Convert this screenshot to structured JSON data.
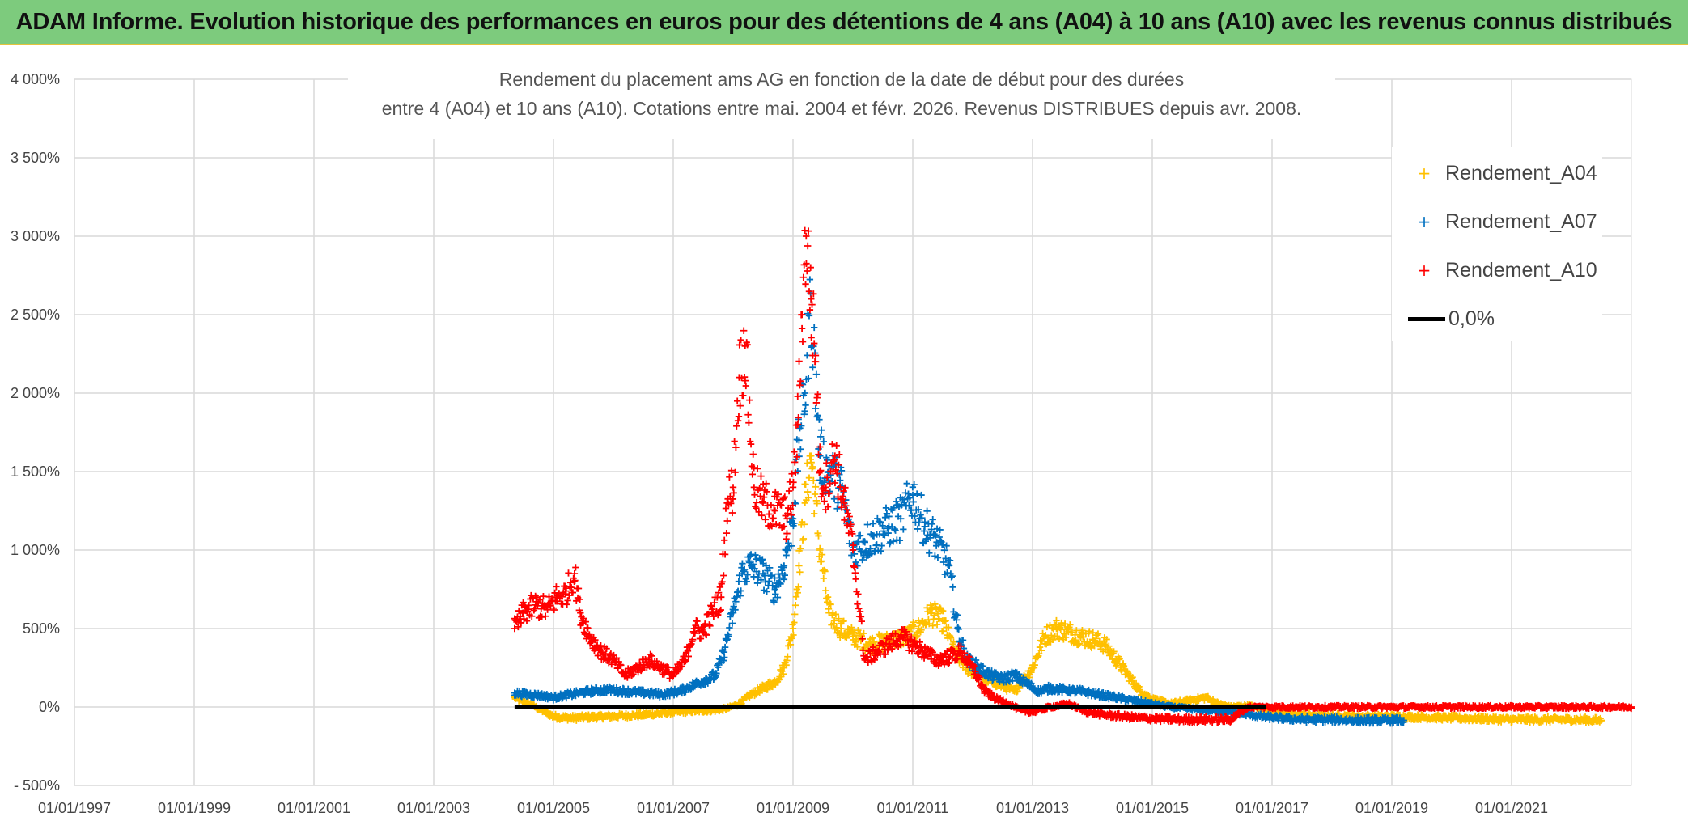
{
  "header": {
    "title": "ADAM Informe. Evolution historique des performances en euros pour des détentions de 4 ans (A04) à 10 ans (A10) avec les revenus connus distribués"
  },
  "chart_data": {
    "type": "scatter",
    "title": "Rendement du placement ams AG en fonction de la date de début pour des durées",
    "subtitle": "entre 4 (A04) et 10 ans (A10). Cotations entre mai. 2004 et févr. 2026. Revenus DISTRIBUES depuis avr. 2008.",
    "xlabel": "",
    "ylabel": "",
    "x_range": [
      "01/01/1997",
      "01/01/2023"
    ],
    "ylim": [
      -500,
      4000
    ],
    "y_ticks": [
      -500,
      0,
      500,
      1000,
      1500,
      2000,
      2500,
      3000,
      3500,
      4000
    ],
    "y_tick_labels": [
      "- 500%",
      "0%",
      "500%",
      "1 000%",
      "1 500%",
      "2 000%",
      "2 500%",
      "3 000%",
      "3 500%",
      "4 000%"
    ],
    "x_tick_labels": [
      "01/01/1997",
      "01/01/1999",
      "01/01/2001",
      "01/01/2003",
      "01/01/2005",
      "01/01/2007",
      "01/01/2009",
      "01/01/2011",
      "01/01/2013",
      "01/01/2015",
      "01/01/2017",
      "01/01/2019",
      "01/01/2021"
    ],
    "grid": true,
    "legend_position": "top-right",
    "series": [
      {
        "name": "Rendement_A04",
        "color": "#ffc000",
        "x": [
          2004.35,
          2004.6,
          2004.85,
          2005.0,
          2005.3,
          2005.6,
          2005.9,
          2006.2,
          2006.5,
          2006.8,
          2007.1,
          2007.4,
          2007.7,
          2007.9,
          2008.1,
          2008.3,
          2008.5,
          2008.7,
          2008.85,
          2009.0,
          2009.1,
          2009.2,
          2009.3,
          2009.45,
          2009.6,
          2009.8,
          2010.0,
          2010.3,
          2010.6,
          2010.9,
          2011.1,
          2011.3,
          2011.5,
          2011.7,
          2011.9,
          2012.1,
          2012.4,
          2012.7,
          2013.0,
          2013.2,
          2013.4,
          2013.6,
          2013.8,
          2014.0,
          2014.2,
          2014.4,
          2014.6,
          2014.8,
          2015.0,
          2015.3,
          2015.6,
          2015.9,
          2016.1,
          2016.3,
          2016.6,
          2016.9,
          2017.2,
          2017.5,
          2018.0,
          2018.5,
          2019.0,
          2019.5,
          2020.0,
          2020.5,
          2021.0,
          2021.5,
          2022.0,
          2022.5
        ],
        "y": [
          60,
          20,
          -30,
          -60,
          -70,
          -65,
          -60,
          -55,
          -50,
          -40,
          -30,
          -25,
          -20,
          -10,
          20,
          80,
          120,
          160,
          250,
          500,
          900,
          1300,
          1600,
          1000,
          600,
          500,
          450,
          400,
          420,
          450,
          500,
          600,
          550,
          350,
          250,
          200,
          150,
          100,
          250,
          450,
          500,
          480,
          450,
          430,
          400,
          300,
          200,
          100,
          50,
          20,
          40,
          60,
          20,
          0,
          10,
          -20,
          -40,
          -50,
          -55,
          -60,
          -60,
          -65,
          -70,
          -75,
          -80,
          -80,
          -80,
          -85
        ]
      },
      {
        "name": "Rendement_A07",
        "color": "#0070c0",
        "x": [
          2004.35,
          2004.6,
          2004.85,
          2005.0,
          2005.3,
          2005.6,
          2005.9,
          2006.2,
          2006.5,
          2006.8,
          2007.1,
          2007.4,
          2007.7,
          2007.85,
          2008.0,
          2008.15,
          2008.3,
          2008.5,
          2008.7,
          2008.85,
          2009.0,
          2009.1,
          2009.2,
          2009.3,
          2009.45,
          2009.6,
          2009.8,
          2010.0,
          2010.2,
          2010.4,
          2010.6,
          2010.8,
          2011.0,
          2011.2,
          2011.4,
          2011.6,
          2011.75,
          2011.9,
          2012.1,
          2012.3,
          2012.5,
          2012.7,
          2012.9,
          2013.1,
          2013.3,
          2013.5,
          2013.8,
          2014.1,
          2014.4,
          2014.7,
          2015.0,
          2015.3,
          2015.6,
          2015.9,
          2016.2,
          2016.5,
          2016.8,
          2017.1,
          2017.5,
          2018.0,
          2018.5,
          2019.0,
          2019.2
        ],
        "y": [
          90,
          80,
          70,
          60,
          80,
          100,
          110,
          100,
          90,
          80,
          100,
          150,
          200,
          350,
          600,
          850,
          900,
          850,
          750,
          900,
          1200,
          1700,
          2000,
          2600,
          1600,
          1500,
          1400,
          1000,
          1050,
          1100,
          1150,
          1200,
          1350,
          1150,
          1050,
          900,
          500,
          300,
          250,
          200,
          180,
          200,
          150,
          100,
          120,
          110,
          100,
          80,
          60,
          40,
          20,
          0,
          -10,
          -20,
          -30,
          -40,
          -60,
          -70,
          -80,
          -80,
          -85,
          -85,
          -85
        ]
      },
      {
        "name": "Rendement_A10",
        "color": "#ff0000",
        "x": [
          2004.35,
          2004.5,
          2004.7,
          2004.9,
          2005.05,
          2005.2,
          2005.35,
          2005.45,
          2005.6,
          2005.8,
          2006.0,
          2006.2,
          2006.4,
          2006.6,
          2006.8,
          2007.0,
          2007.2,
          2007.35,
          2007.5,
          2007.65,
          2007.8,
          2007.9,
          2008.0,
          2008.1,
          2008.2,
          2008.35,
          2008.5,
          2008.7,
          2008.9,
          2009.0,
          2009.08,
          2009.15,
          2009.22,
          2009.3,
          2009.38,
          2009.45,
          2009.55,
          2009.7,
          2009.85,
          2010.0,
          2010.2,
          2010.4,
          2010.6,
          2010.8,
          2011.0,
          2011.2,
          2011.4,
          2011.6,
          2011.8,
          2012.0,
          2012.2,
          2012.4,
          2012.6,
          2012.8,
          2013.0,
          2013.3,
          2013.6,
          2013.9,
          2014.2,
          2014.5,
          2014.8,
          2015.1,
          2015.4,
          2015.7,
          2016.0,
          2016.3,
          2016.6,
          2017.0,
          2017.5,
          2018.0,
          2018.5,
          2019.0,
          2019.5,
          2020.0,
          2020.5,
          2021.0,
          2021.5,
          2022.0,
          2022.5,
          2023.0
        ],
        "y": [
          500,
          600,
          650,
          620,
          700,
          720,
          850,
          600,
          450,
          350,
          300,
          200,
          250,
          300,
          250,
          200,
          300,
          500,
          480,
          600,
          700,
          1300,
          1400,
          2100,
          2300,
          1400,
          1300,
          1250,
          1200,
          1400,
          1800,
          2500,
          3000,
          2600,
          2200,
          1500,
          1400,
          1600,
          1300,
          1000,
          300,
          350,
          400,
          450,
          400,
          350,
          300,
          320,
          350,
          250,
          100,
          50,
          20,
          -20,
          -30,
          0,
          20,
          -30,
          -50,
          -60,
          -70,
          -75,
          -80,
          -80,
          -80,
          -80,
          0,
          0,
          0,
          0,
          0,
          0,
          0,
          0,
          0,
          0,
          0,
          0,
          0,
          0
        ]
      },
      {
        "name": "0,0%",
        "color": "#000000",
        "x": [
          2004.35,
          2016.9
        ],
        "y": [
          0,
          0
        ]
      }
    ]
  }
}
